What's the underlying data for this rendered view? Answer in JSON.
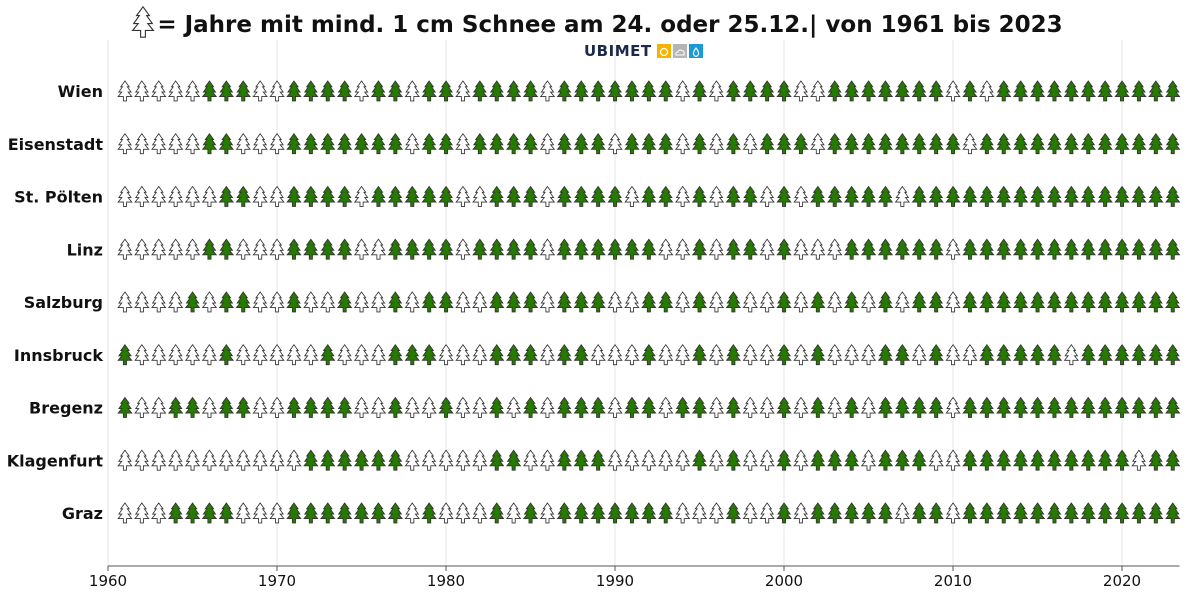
{
  "title": {
    "icon": "tree-outline-icon",
    "text": "= Jahre mit mind. 1 cm Schnee am 24. oder 25.12.| von 1961 bis 2023"
  },
  "logo": {
    "text": "UBIMET",
    "icons": [
      "sun-icon",
      "cloud-icon",
      "drop-icon"
    ]
  },
  "colors": {
    "snow": "#267a00",
    "no_snow": "#ffffff",
    "outline": "#333333",
    "grid": "#e6e6e6"
  },
  "chart_data": {
    "type": "pictogram",
    "legend": "tree outline = year with at least 1 cm snow on 24 or 25 Dec; filled green tree = snow, white tree = no snow",
    "xlim": [
      1960,
      2023.4
    ],
    "xticks": [
      1960,
      1970,
      1980,
      1990,
      2000,
      2010,
      2020
    ],
    "grid": "vertical",
    "year_start": 1961,
    "year_end": 2023,
    "series": [
      {
        "name": "Wien",
        "snow": "0000011100111101101101111011111"
      },
      {
        "name": "Eisenstadt",
        "snow": "0000011000111111101101111011101"
      },
      {
        "name": "St. Pölten",
        "snow": "0000001100111101111100111011110"
      },
      {
        "name": "Linz",
        "snow": "0000011000111100111101111011111"
      },
      {
        "name": "Salzburg",
        "snow": "0000101100100100101100111011100"
      },
      {
        "name": "Innsbruck",
        "snow": "1000001000001000111000111011000"
      },
      {
        "name": "Bregenz",
        "snow": "1001101100111100100100101011101"
      },
      {
        "name": "Klagenfurt",
        "snow": "0000000000011111100000110011100"
      },
      {
        "name": "Graz",
        "snow": "0001111000111111101000101011111"
      }
    ],
    "series_tail": [
      "11010111100111111101011111111111",
      "11010101110111111110111111111111",
      "11010110101111101111111111111111",
      "10010110100011111101111111111111",
      "11010100101010101101111111111111",
      "10010100101000110100111110111111",
      "10110100101010111101111111111111",
      "00010100101110111001111111111011",
      "11000100101111101101111111111111"
    ]
  }
}
